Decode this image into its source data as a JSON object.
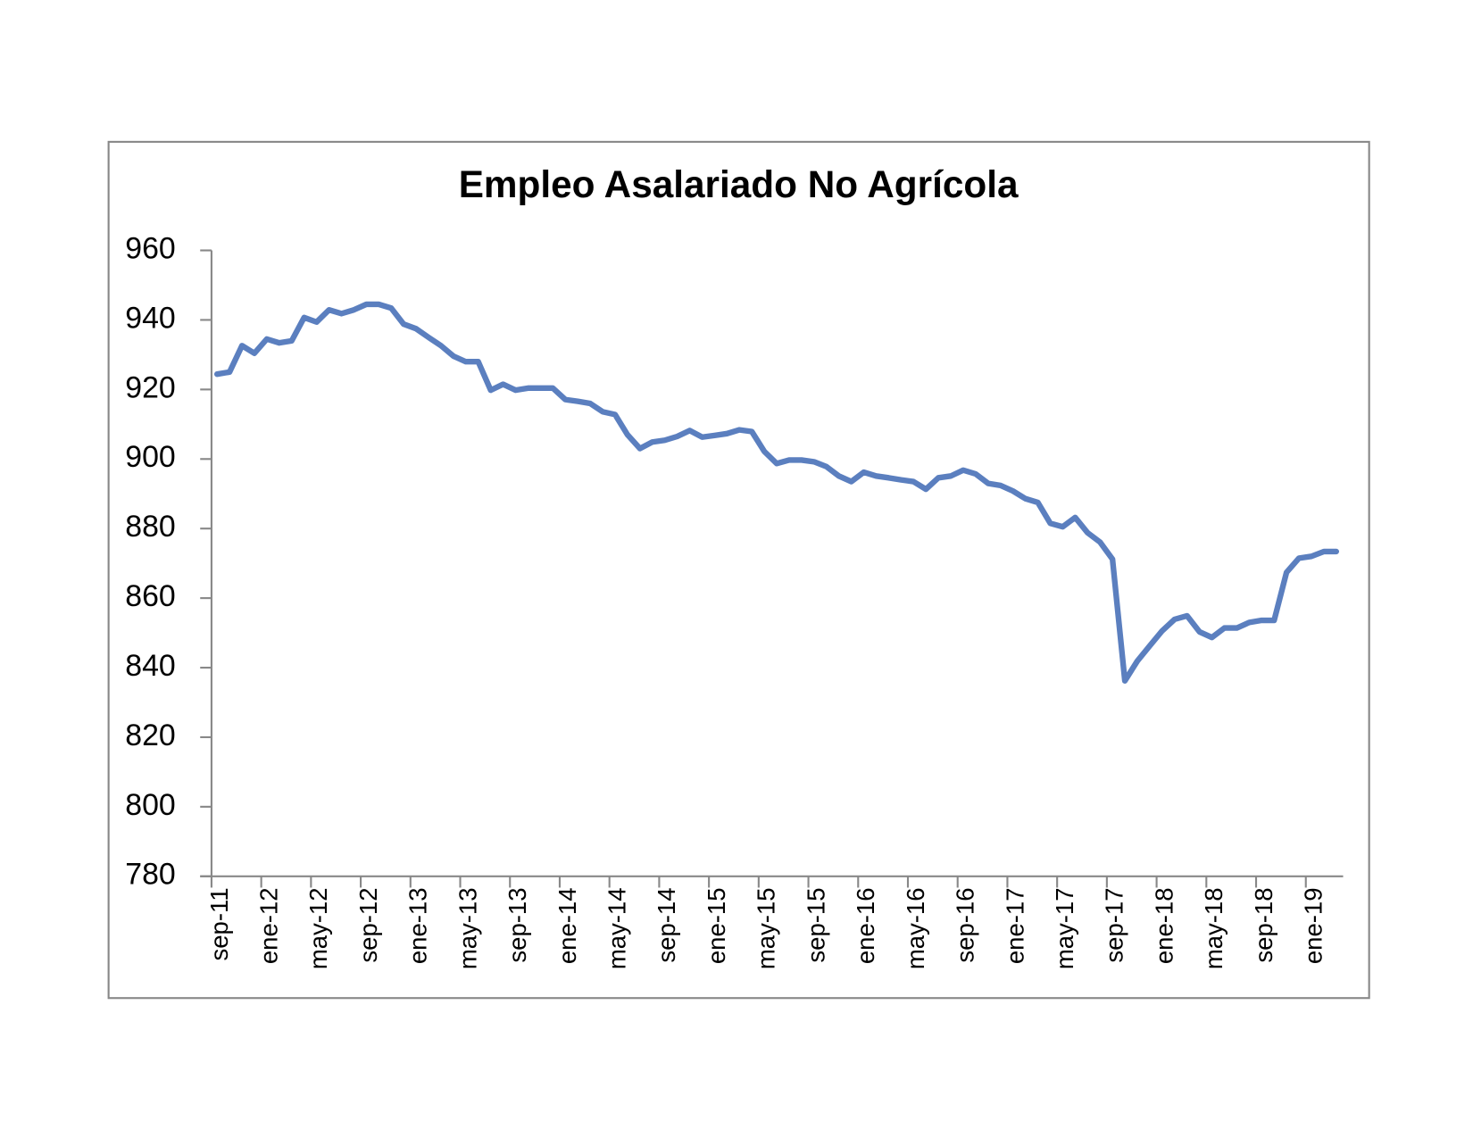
{
  "chart_data": {
    "type": "line",
    "title": "Empleo Asalariado No Agrícola",
    "categories": [
      "sep-11",
      null,
      null,
      null,
      "ene-12",
      null,
      null,
      null,
      "may-12",
      null,
      null,
      null,
      "sep-12",
      null,
      null,
      null,
      "ene-13",
      null,
      null,
      null,
      "may-13",
      null,
      null,
      null,
      "sep-13",
      null,
      null,
      null,
      "ene-14",
      null,
      null,
      null,
      "may-14",
      null,
      null,
      null,
      "sep-14",
      null,
      null,
      null,
      "ene-15",
      null,
      null,
      null,
      "may-15",
      null,
      null,
      null,
      "sep-15",
      null,
      null,
      null,
      "ene-16",
      null,
      null,
      null,
      "may-16",
      null,
      null,
      null,
      "sep-16",
      null,
      null,
      null,
      "ene-17",
      null,
      null,
      null,
      "may-17",
      null,
      null,
      null,
      "sep-17",
      null,
      null,
      null,
      "ene-18",
      null,
      null,
      null,
      "may-18",
      null,
      null,
      null,
      "sep-18",
      null,
      null,
      null,
      "ene-19",
      null,
      null
    ],
    "series": [
      {
        "name": "Empleo Asalariado No Agrícola",
        "color": "#5b7fbf",
        "values": [
          924.4,
          925,
          932.6,
          930.4,
          934.5,
          933.4,
          934,
          940.7,
          939.4,
          942.9,
          941.8,
          942.9,
          944.5,
          944.5,
          943.4,
          938.8,
          937.5,
          935,
          932.6,
          929.6,
          928,
          928,
          919.8,
          921.5,
          919.8,
          920.4,
          920.4,
          920.4,
          917.1,
          916.6,
          916,
          913.6,
          912.8,
          907,
          903,
          904.9,
          905.4,
          906.5,
          908.2,
          906.3,
          906.8,
          907.3,
          908.4,
          907.9,
          902.2,
          898.7,
          899.7,
          899.7,
          899.2,
          897.8,
          895.1,
          893.5,
          896.2,
          895.1,
          894.6,
          894,
          893.5,
          891.3,
          894.6,
          895.1,
          896.8,
          895.7,
          893,
          892.4,
          890.8,
          888.6,
          887.5,
          881.5,
          880.5,
          883.2,
          878.8,
          876.1,
          871.2,
          836.2,
          841.9,
          846.3,
          850.6,
          853.9,
          854.9,
          850.3,
          848.7,
          851.4,
          851.4,
          853,
          853.6,
          853.6,
          867.4,
          871.5,
          872,
          873.4,
          873.4
        ]
      }
    ],
    "ylim": [
      780,
      960
    ],
    "yticks": [
      780,
      800,
      820,
      840,
      860,
      880,
      900,
      920,
      940,
      960
    ]
  }
}
